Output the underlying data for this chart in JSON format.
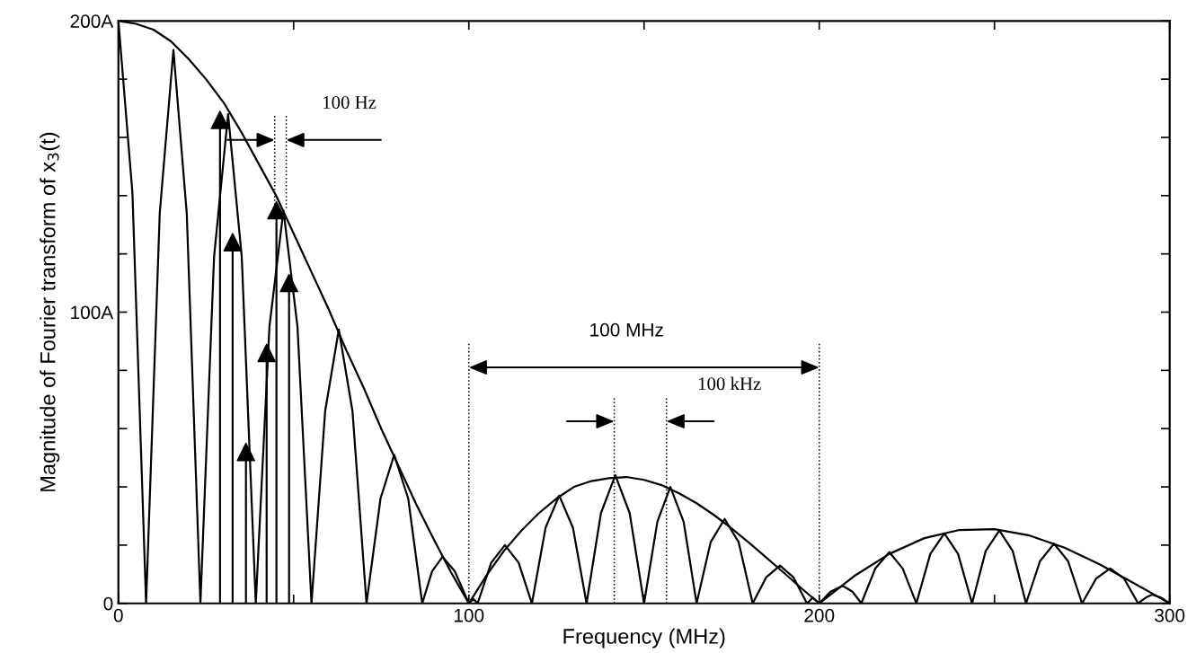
{
  "chart_data": {
    "type": "line",
    "xlabel": "Frequency (MHz)",
    "ylabel": "Magnitude of Fourier transform of x$_{3}$(t)",
    "xlim": [
      0,
      300
    ],
    "ylim": [
      0,
      200
    ],
    "xticks": [
      0,
      {
        "value": 50,
        "label": null
      },
      100,
      {
        "value": 150,
        "label": null
      },
      200,
      {
        "value": 250,
        "label": null
      },
      300
    ],
    "yticks": [
      0,
      {
        "value": 20,
        "label": null
      },
      {
        "value": 40,
        "label": null
      },
      {
        "value": 60,
        "label": null
      },
      {
        "value": 80,
        "label": null
      },
      {
        "value": 100,
        "label": "100A"
      },
      {
        "value": 120,
        "label": null
      },
      {
        "value": 140,
        "label": null
      },
      {
        "value": 160,
        "label": null
      },
      {
        "value": 180,
        "label": null
      },
      {
        "value": 200,
        "label": "200A"
      }
    ],
    "grid": false,
    "series": [
      {
        "color": "#000000",
        "x": [
          0,
          5,
          10,
          15,
          20,
          25,
          30,
          35,
          40,
          45,
          50,
          55,
          60,
          65,
          70,
          75,
          80,
          85,
          90,
          95,
          100,
          105,
          110,
          115,
          120,
          125,
          130,
          135,
          140,
          145,
          150,
          155,
          160,
          165,
          170,
          175,
          180,
          185,
          190,
          195,
          200,
          210,
          220,
          230,
          240,
          250,
          260,
          270,
          280,
          290,
          300
        ],
        "values": [
          200,
          199,
          197,
          193,
          187,
          180,
          172,
          162,
          151,
          140,
          127,
          114,
          101,
          87,
          74,
          60,
          47,
          34,
          22,
          10.5,
          0,
          9.5,
          18,
          25,
          31,
          36,
          40,
          42,
          43,
          43.4,
          42.4,
          40.6,
          37.8,
          34.4,
          30.3,
          25.7,
          20.8,
          15.6,
          10.4,
          5.1,
          0,
          9.4,
          17,
          22.4,
          25.2,
          25.5,
          23.3,
          19.1,
          13.4,
          6.8,
          0
        ]
      },
      {
        "color": "#000000",
        "x": [
          0,
          4,
          7.9,
          11.8,
          15.7,
          19.5,
          23.4,
          27.3,
          31.3,
          35.2,
          39.2,
          43.1,
          47.1,
          51.1,
          55.1,
          59,
          62.9,
          66.8,
          70.8,
          74.8,
          78.7,
          82.7,
          86.7,
          89.5,
          92.5,
          96,
          100,
          101.3,
          102.5,
          106.4,
          110.3,
          114.2,
          118,
          121.9,
          125.8,
          129.7,
          133.6,
          137.7,
          141.8,
          145.9,
          150,
          153.8,
          157.5,
          161.3,
          165,
          169,
          173,
          177,
          181,
          184.9,
          188.8,
          192.6,
          196.5,
          198.2,
          200,
          203.2,
          206.7,
          209.5,
          212,
          216,
          220,
          223.8,
          227.7,
          231.7,
          235.7,
          239.6,
          243.6,
          247.5,
          251.4,
          255.2,
          259,
          263,
          267,
          271,
          275,
          279,
          283,
          287,
          291,
          293.2,
          295,
          297.5,
          300
        ],
        "values": [
          200,
          141,
          0,
          134,
          190,
          134,
          0,
          119,
          168,
          119,
          0,
          95,
          135,
          95,
          0,
          66,
          94,
          66,
          0,
          36,
          51,
          36,
          0,
          11,
          16,
          11,
          0,
          1.5,
          0,
          14,
          20,
          14,
          0,
          26,
          37,
          26,
          0,
          31,
          44,
          31,
          0,
          28,
          40,
          28,
          0,
          21,
          29,
          21,
          0,
          9,
          13,
          9,
          0,
          2,
          0,
          4,
          6,
          4,
          0,
          12,
          17.6,
          12,
          0,
          17,
          24,
          17,
          0,
          18,
          25,
          18,
          0,
          14.5,
          20.5,
          14.5,
          0,
          8.5,
          12,
          8.5,
          0,
          2,
          3,
          2,
          0
        ]
      },
      {
        "type": "lollipop",
        "color": "#000000",
        "marker": "triangle",
        "x": [
          29,
          32.6,
          36.4,
          42.3,
          45.1,
          48.7
        ],
        "values": [
          166,
          124,
          52,
          86,
          135,
          110
        ]
      }
    ],
    "ref_lines": [
      {
        "axis": "x",
        "value": 44.6,
        "line_style": "dotted",
        "color": "#000000"
      },
      {
        "axis": "x",
        "value": 47.9,
        "line_style": "dotted",
        "color": "#000000"
      },
      {
        "axis": "x",
        "value": 100,
        "line_style": "dotted",
        "color": "#000000"
      },
      {
        "axis": "x",
        "value": 200,
        "line_style": "dotted",
        "color": "#000000"
      },
      {
        "axis": "x",
        "value": 141.5,
        "line_style": "dotted",
        "color": "#000000"
      },
      {
        "axis": "x",
        "value": 156.4,
        "line_style": "dotted",
        "color": "#000000"
      }
    ],
    "annotations": [
      "100 Hz",
      "100 MHz",
      "100 kHz"
    ]
  }
}
